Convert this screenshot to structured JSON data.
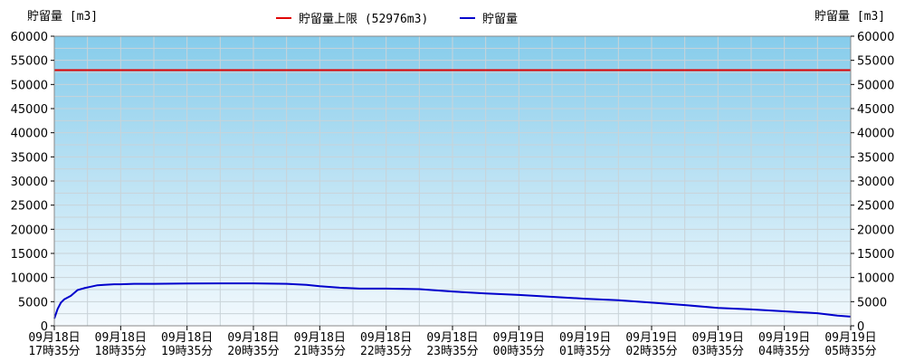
{
  "chart_data": {
    "type": "line",
    "ylabel_left": "貯留量 [m3]",
    "ylabel_right": "貯留量 [m3]",
    "ylim": [
      0,
      60000
    ],
    "yticks": [
      0,
      5000,
      10000,
      15000,
      20000,
      25000,
      30000,
      35000,
      40000,
      45000,
      50000,
      55000,
      60000
    ],
    "grid": true,
    "legend_position": "top-center",
    "x_tick_labels": [
      [
        "09月18日",
        "17時35分"
      ],
      [
        "09月18日",
        "18時35分"
      ],
      [
        "09月18日",
        "19時35分"
      ],
      [
        "09月18日",
        "20時35分"
      ],
      [
        "09月18日",
        "21時35分"
      ],
      [
        "09月18日",
        "22時35分"
      ],
      [
        "09月18日",
        "23時35分"
      ],
      [
        "09月19日",
        "00時35分"
      ],
      [
        "09月19日",
        "01時35分"
      ],
      [
        "09月19日",
        "02時35分"
      ],
      [
        "09月19日",
        "03時35分"
      ],
      [
        "09月19日",
        "04時35分"
      ],
      [
        "09月19日",
        "05時35分"
      ]
    ],
    "series": [
      {
        "name": "貯留量上限 (52976m3)",
        "color": "#e00000",
        "x": [
          0,
          12
        ],
        "values": [
          52976,
          52976
        ]
      },
      {
        "name": "貯留量",
        "color": "#0000cc",
        "x": [
          0,
          0.05,
          0.1,
          0.15,
          0.25,
          0.35,
          0.45,
          0.55,
          0.65,
          0.75,
          0.9,
          1.0,
          1.2,
          1.5,
          2.0,
          2.5,
          3.0,
          3.5,
          3.8,
          4.0,
          4.3,
          4.6,
          5.0,
          5.5,
          6.0,
          6.5,
          7.0,
          7.5,
          8.0,
          8.5,
          9.0,
          9.5,
          10.0,
          10.5,
          11.0,
          11.5,
          11.8,
          12.0
        ],
        "values": [
          1500,
          3500,
          4800,
          5500,
          6200,
          7400,
          7800,
          8100,
          8400,
          8500,
          8600,
          8600,
          8700,
          8700,
          8750,
          8800,
          8800,
          8700,
          8500,
          8200,
          7900,
          7700,
          7700,
          7600,
          7100,
          6700,
          6400,
          6000,
          5600,
          5300,
          4800,
          4300,
          3700,
          3400,
          3000,
          2600,
          2100,
          1900
        ]
      }
    ]
  }
}
